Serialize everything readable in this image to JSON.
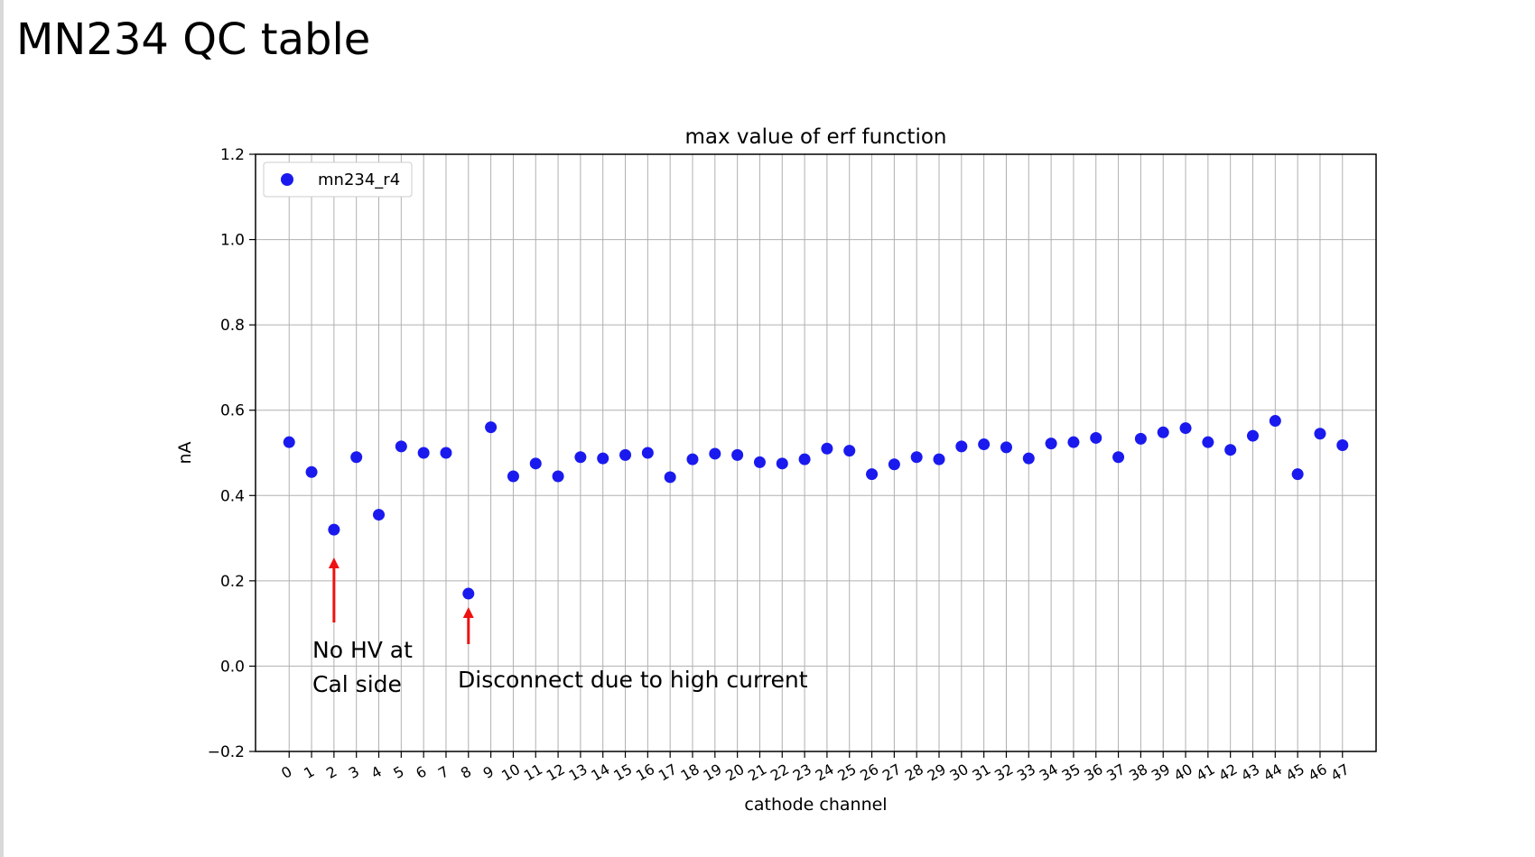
{
  "slide": {
    "title": "MN234 QC table"
  },
  "annotations": [
    {
      "line1": "No HV at",
      "line2": "Cal side",
      "points_to_x": 2
    },
    {
      "line1": "Disconnect due to high current",
      "points_to_x": 8
    }
  ],
  "colors": {
    "series": "#1a1aee",
    "arrow": "#ee1111",
    "grid": "#b0b0b0"
  },
  "chart_data": {
    "type": "scatter",
    "title": "max value of erf function",
    "xlabel": "cathode channel",
    "ylabel": "nA",
    "xlim": [
      -1.5,
      48.5
    ],
    "ylim": [
      -0.2,
      1.2
    ],
    "yticks": [
      -0.2,
      0.0,
      0.2,
      0.4,
      0.6,
      0.8,
      1.0,
      1.2
    ],
    "ytick_labels": [
      "−0.2",
      "0.0",
      "0.2",
      "0.4",
      "0.6",
      "0.8",
      "1.0",
      "1.2"
    ],
    "grid": true,
    "legend_position": "top-left",
    "x": [
      0,
      1,
      2,
      3,
      4,
      5,
      6,
      7,
      8,
      9,
      10,
      11,
      12,
      13,
      14,
      15,
      16,
      17,
      18,
      19,
      20,
      21,
      22,
      23,
      24,
      25,
      26,
      27,
      28,
      29,
      30,
      31,
      32,
      33,
      34,
      35,
      36,
      37,
      38,
      39,
      40,
      41,
      42,
      43,
      44,
      45,
      46,
      47
    ],
    "series": [
      {
        "name": "mn234_r4",
        "values": [
          0.525,
          0.455,
          0.32,
          0.49,
          0.355,
          0.515,
          0.5,
          0.5,
          0.17,
          0.56,
          0.445,
          0.475,
          0.445,
          0.49,
          0.487,
          0.495,
          0.5,
          0.443,
          0.485,
          0.498,
          0.495,
          0.478,
          0.475,
          0.485,
          0.51,
          0.505,
          0.45,
          0.473,
          0.49,
          0.485,
          0.515,
          0.52,
          0.513,
          0.487,
          0.522,
          0.525,
          0.535,
          0.49,
          0.533,
          0.548,
          0.558,
          0.525,
          0.507,
          0.54,
          0.575,
          0.45,
          0.545,
          0.518
        ]
      }
    ]
  }
}
